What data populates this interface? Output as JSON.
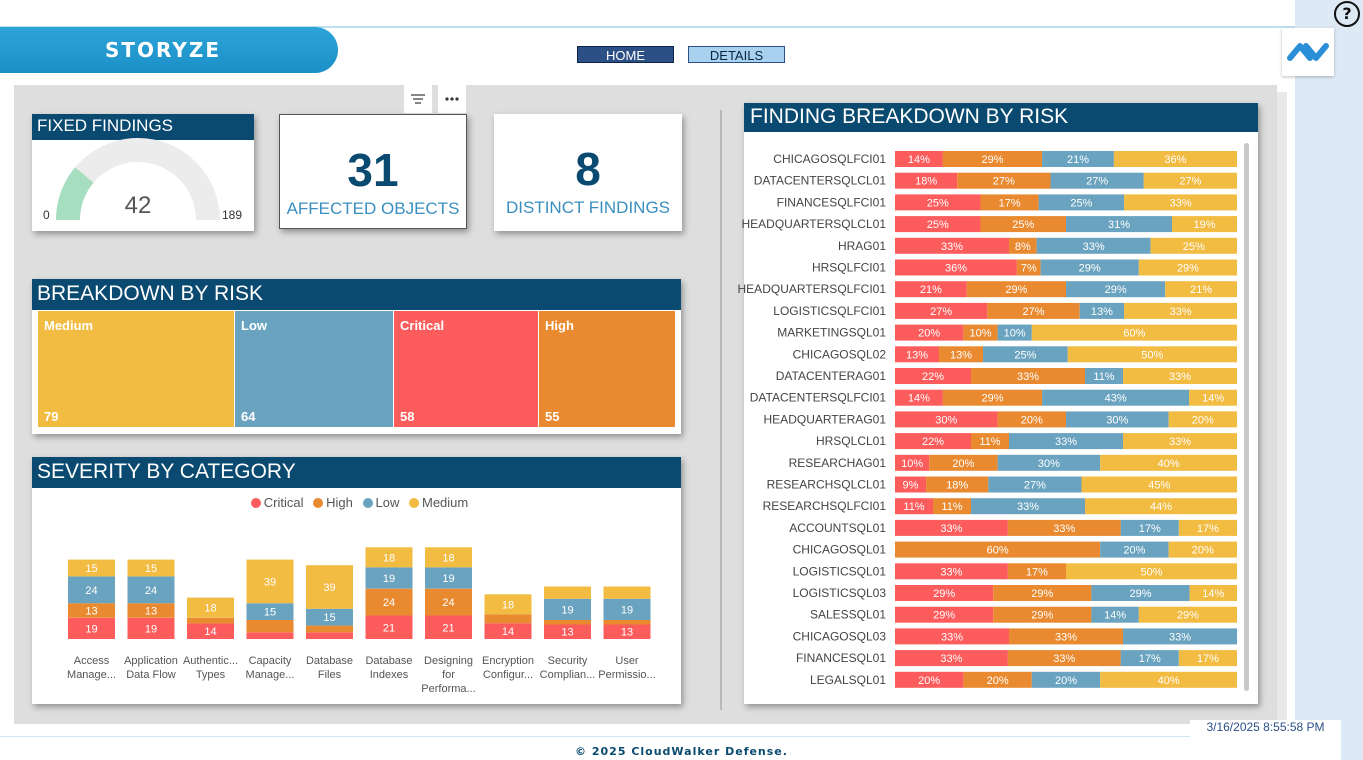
{
  "app": {
    "title": "STORYZE",
    "help": "?"
  },
  "nav": {
    "home": "HOME",
    "details": "DETAILS"
  },
  "toolbar": {
    "filter_icon": "filter-icon",
    "more_icon": "more-options-icon"
  },
  "fixed_findings": {
    "title": "FIXED FINDINGS",
    "value": "42",
    "min": "0",
    "max": "189",
    "fill_fraction": 0.222
  },
  "kpis": {
    "affected_objects": {
      "value": "31",
      "label": "AFFECTED OBJECTS"
    },
    "distinct_findings": {
      "value": "8",
      "label": "DISTINCT FINDINGS"
    }
  },
  "colors": {
    "critical": "#fd5c5c",
    "high": "#e98a30",
    "low": "#6aa3bf",
    "medium": "#f2bb42",
    "header": "#0a4a70"
  },
  "breakdown_by_risk": {
    "title": "BREAKDOWN BY RISK",
    "tiles": [
      {
        "label": "Medium",
        "value": "79"
      },
      {
        "label": "Low",
        "value": "64"
      },
      {
        "label": "Critical",
        "value": "58"
      },
      {
        "label": "High",
        "value": "55"
      }
    ]
  },
  "severity_by_category": {
    "title": "SEVERITY BY CATEGORY",
    "legend": [
      "Critical",
      "High",
      "Low",
      "Medium"
    ]
  },
  "finding_breakdown": {
    "title": "FINDING BREAKDOWN BY RISK"
  },
  "chart_data": [
    {
      "type": "bar",
      "stacked": true,
      "title": "SEVERITY BY CATEGORY",
      "categories": [
        "Access Manage...",
        "Application Data Flow",
        "Authentic... Types",
        "Capacity Manage...",
        "Database Files",
        "Database Indexes",
        "Designing for Performa...",
        "Encryption Configur...",
        "Security Complian...",
        "User Permissio..."
      ],
      "series": [
        {
          "name": "Critical",
          "values": [
            19,
            19,
            14,
            6,
            6,
            21,
            21,
            14,
            13,
            13
          ]
        },
        {
          "name": "High",
          "values": [
            13,
            13,
            5,
            11,
            6,
            24,
            24,
            8,
            4,
            4
          ]
        },
        {
          "name": "Low",
          "values": [
            24,
            24,
            0,
            15,
            15,
            19,
            19,
            0,
            19,
            19
          ]
        },
        {
          "name": "Medium",
          "values": [
            15,
            15,
            18,
            39,
            39,
            18,
            18,
            18,
            11,
            11
          ]
        }
      ],
      "labels": [
        [
          19,
          13,
          24,
          15
        ],
        [
          19,
          13,
          24,
          15
        ],
        [
          14,
          null,
          null,
          18
        ],
        [
          null,
          null,
          15,
          39
        ],
        [
          null,
          null,
          15,
          39
        ],
        [
          21,
          24,
          19,
          18
        ],
        [
          21,
          24,
          19,
          18
        ],
        [
          14,
          null,
          null,
          18
        ],
        [
          13,
          null,
          19,
          null
        ],
        [
          13,
          null,
          19,
          null
        ]
      ],
      "legend_position": "top"
    },
    {
      "type": "bar",
      "orientation": "horizontal",
      "stacked_percent": true,
      "title": "FINDING BREAKDOWN BY RISK",
      "series_order": [
        "Critical",
        "High",
        "Low",
        "Medium"
      ],
      "rows": [
        {
          "name": "CHICAGOSQLFCI01",
          "values": [
            14,
            29,
            21,
            36
          ]
        },
        {
          "name": "DATACENTERSQLCL01",
          "values": [
            18,
            27,
            27,
            27
          ]
        },
        {
          "name": "FINANCESQLFCI01",
          "values": [
            25,
            17,
            25,
            33
          ]
        },
        {
          "name": "HEADQUARTERSQLCL01",
          "values": [
            25,
            25,
            31,
            19
          ]
        },
        {
          "name": "HRAG01",
          "values": [
            33,
            8,
            33,
            25
          ]
        },
        {
          "name": "HRSQLFCI01",
          "values": [
            36,
            7,
            29,
            29
          ]
        },
        {
          "name": "HEADQUARTERSQLFCI01",
          "values": [
            21,
            29,
            29,
            21
          ]
        },
        {
          "name": "LOGISTICSQLFCI01",
          "values": [
            27,
            27,
            13,
            33
          ]
        },
        {
          "name": "MARKETINGSQL01",
          "values": [
            20,
            10,
            10,
            60
          ]
        },
        {
          "name": "CHICAGOSQL02",
          "values": [
            13,
            13,
            25,
            50
          ]
        },
        {
          "name": "DATACENTERAG01",
          "values": [
            22,
            33,
            11,
            33
          ]
        },
        {
          "name": "DATACENTERSQLFCI01",
          "values": [
            14,
            29,
            43,
            14
          ]
        },
        {
          "name": "HEADQUARTERAG01",
          "values": [
            30,
            20,
            30,
            20
          ]
        },
        {
          "name": "HRSQLCL01",
          "values": [
            22,
            11,
            33,
            33
          ]
        },
        {
          "name": "RESEARCHAG01",
          "values": [
            10,
            20,
            30,
            40
          ]
        },
        {
          "name": "RESEARCHSQLCL01",
          "values": [
            9,
            18,
            27,
            45
          ]
        },
        {
          "name": "RESEARCHSQLFCI01",
          "values": [
            11,
            11,
            33,
            44
          ]
        },
        {
          "name": "ACCOUNTSQL01",
          "values": [
            33,
            33,
            17,
            17
          ]
        },
        {
          "name": "CHICAGOSQL01",
          "values": [
            0,
            60,
            20,
            20
          ]
        },
        {
          "name": "LOGISTICSQL01",
          "values": [
            33,
            17,
            0,
            50
          ]
        },
        {
          "name": "LOGISTICSQL03",
          "values": [
            29,
            29,
            29,
            14
          ]
        },
        {
          "name": "SALESSQL01",
          "values": [
            29,
            29,
            14,
            29
          ]
        },
        {
          "name": "CHICAGOSQL03",
          "values": [
            33,
            33,
            33,
            0
          ]
        },
        {
          "name": "FINANCESQL01",
          "values": [
            33,
            33,
            17,
            17
          ]
        },
        {
          "name": "LEGALSQL01",
          "values": [
            20,
            20,
            20,
            40
          ]
        }
      ]
    }
  ],
  "footer": {
    "copyright": "© 2025 CloudWalker Defense.",
    "timestamp": "3/16/2025 8:55:58 PM"
  }
}
